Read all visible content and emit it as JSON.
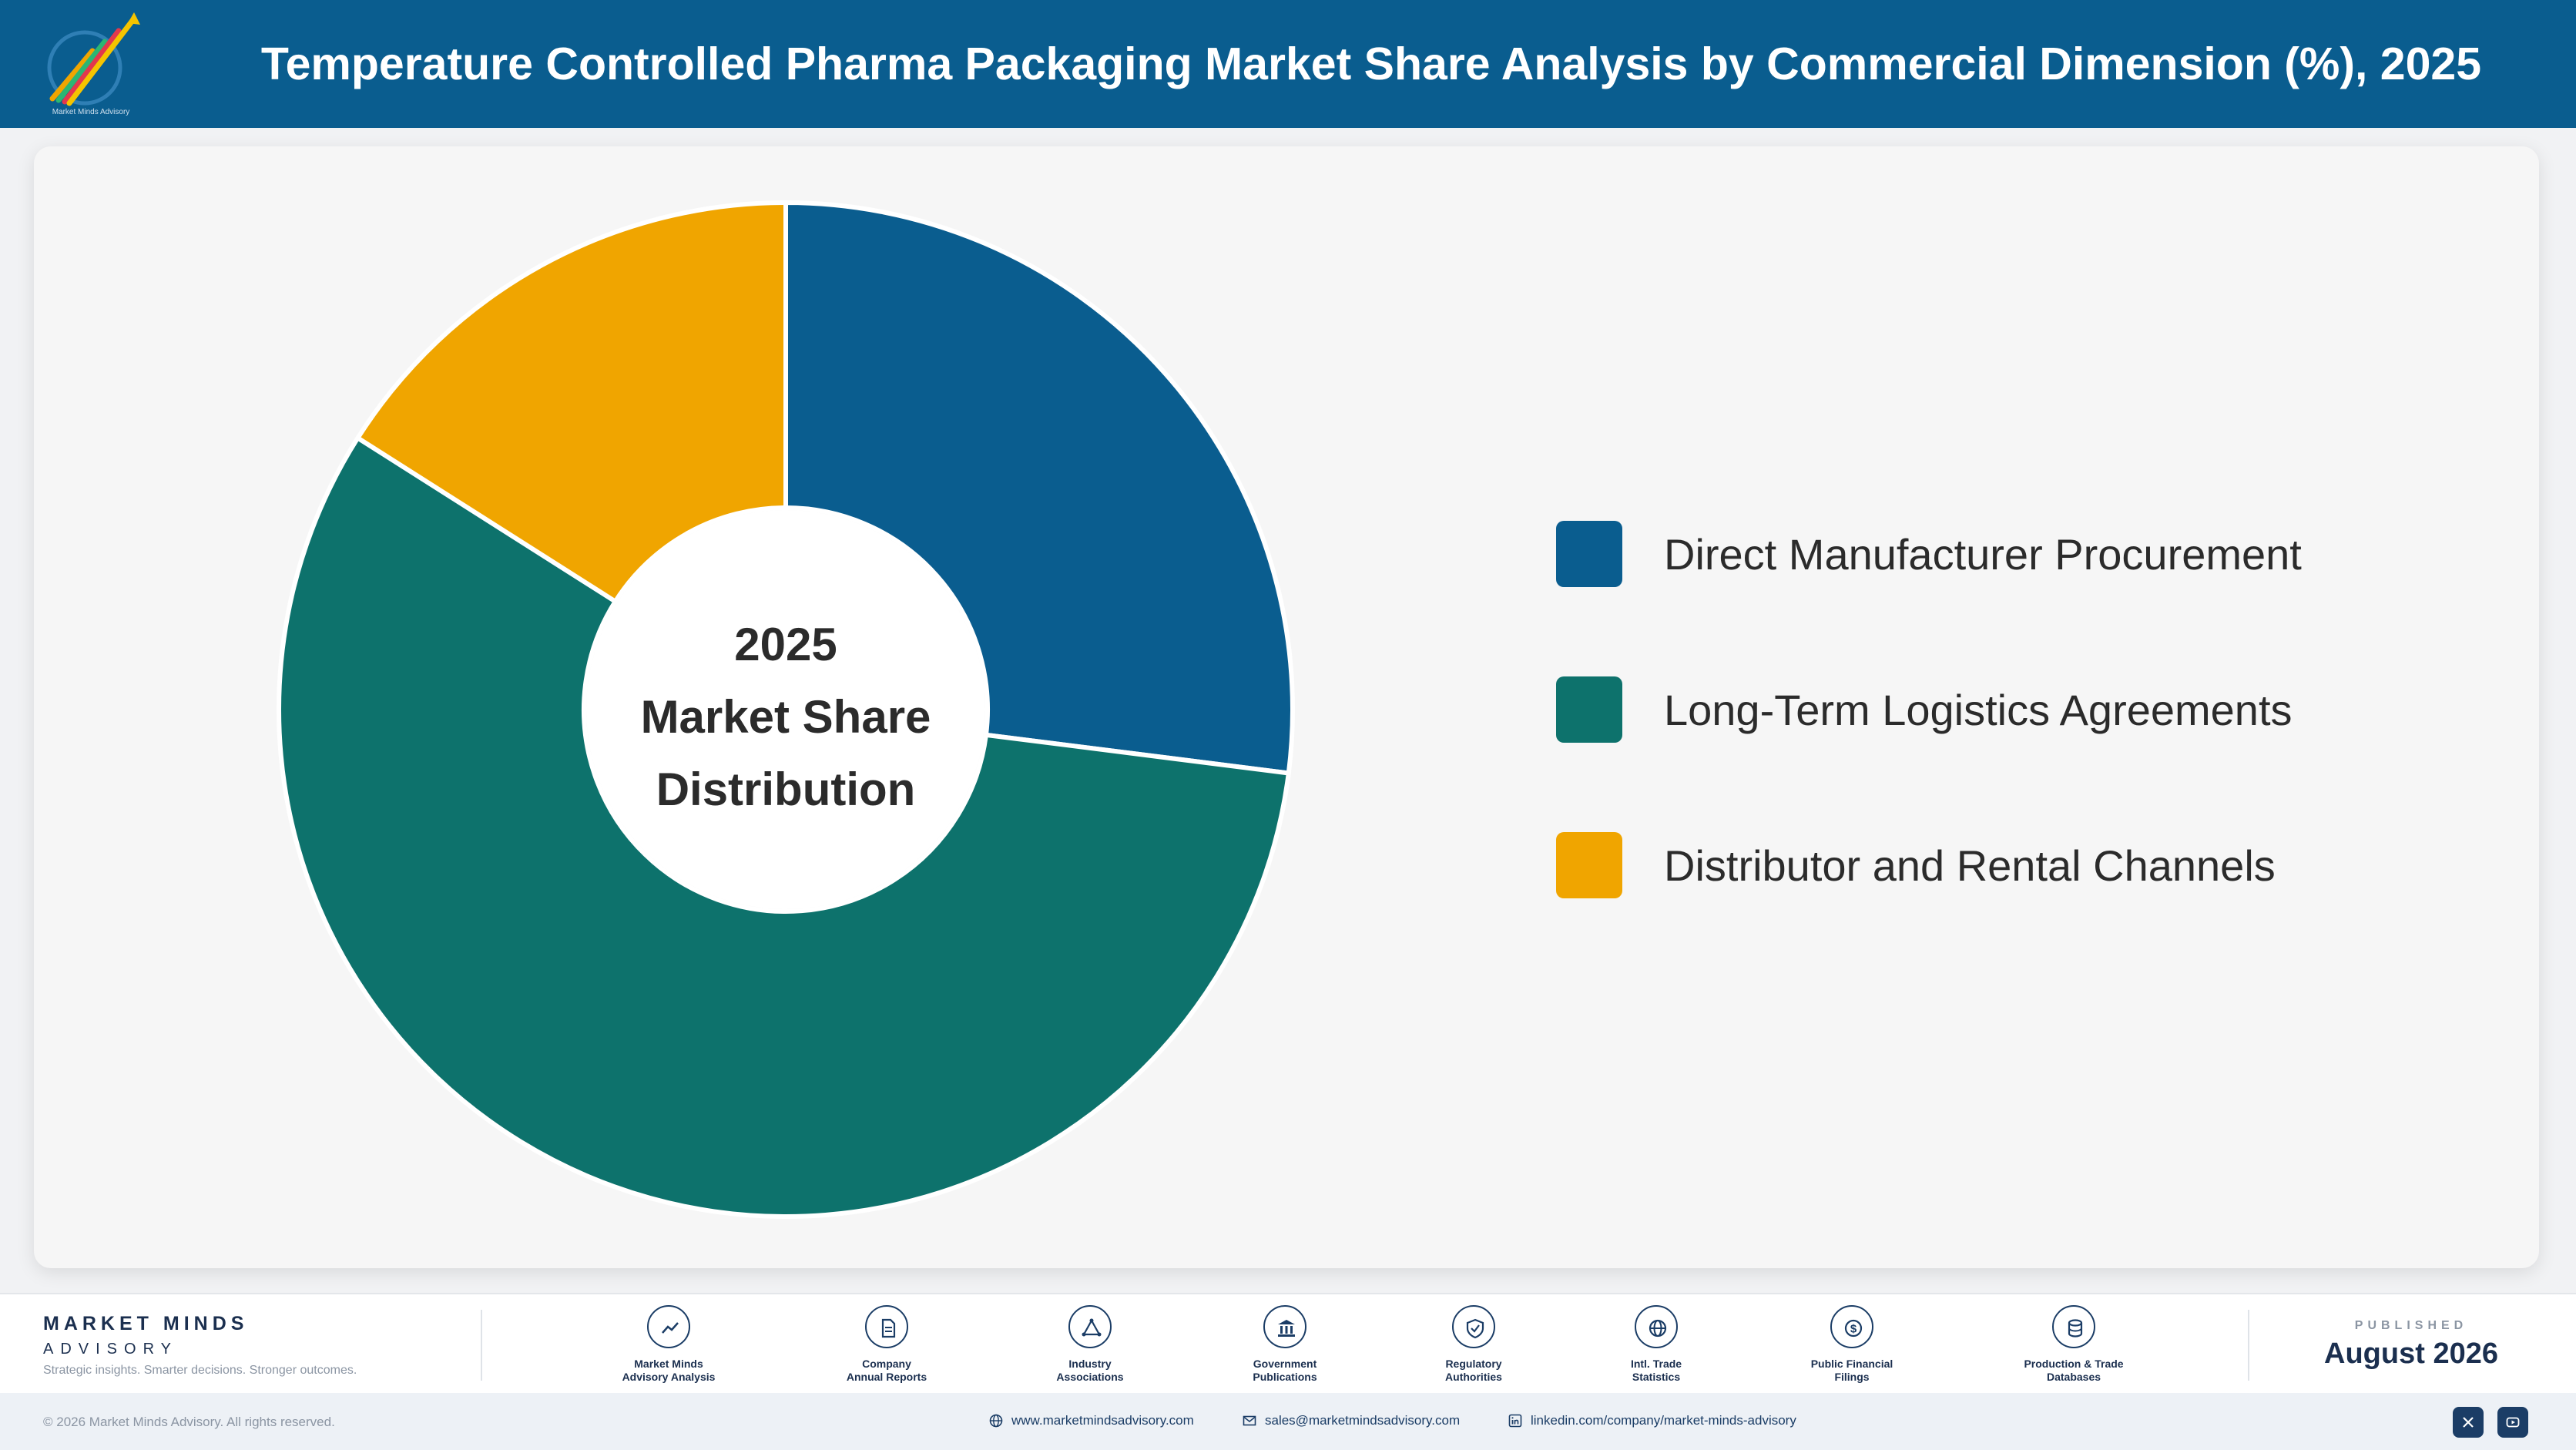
{
  "header": {
    "title": "Temperature Controlled Pharma Packaging Market Share Analysis by Commercial Dimension (%), 2025",
    "logo_caption": "Market Minds Advisory"
  },
  "chart_data": {
    "type": "pie",
    "style": "donut",
    "center_text": [
      "2025",
      "Market Share",
      "Distribution"
    ],
    "legend_position": "right",
    "slices": [
      {
        "label": "Direct Manufacturer Procurement",
        "value": 27,
        "color": "#0a5d8f"
      },
      {
        "label": "Long-Term Logistics Agreements",
        "value": 57,
        "color": "#0d726c"
      },
      {
        "label": "Distributor and Rental Channels",
        "value": 16,
        "color": "#f0a500"
      }
    ]
  },
  "footer": {
    "brand_name": "MARKET MINDS",
    "brand_sub": "ADVISORY",
    "tagline": "Strategic insights. Smarter decisions. Stronger outcomes.",
    "sources": [
      {
        "line1": "Market Minds",
        "line2": "Advisory Analysis",
        "icon": "trend-icon"
      },
      {
        "line1": "Company",
        "line2": "Annual Reports",
        "icon": "document-icon"
      },
      {
        "line1": "Industry",
        "line2": "Associations",
        "icon": "network-icon"
      },
      {
        "line1": "Government",
        "line2": "Publications",
        "icon": "building-icon"
      },
      {
        "line1": "Regulatory",
        "line2": "Authorities",
        "icon": "shield-icon"
      },
      {
        "line1": "Intl. Trade",
        "line2": "Statistics",
        "icon": "globe-icon"
      },
      {
        "line1": "Public Financial",
        "line2": "Filings",
        "icon": "dollar-icon"
      },
      {
        "line1": "Production & Trade",
        "line2": "Databases",
        "icon": "database-icon"
      }
    ],
    "published_label": "PUBLISHED",
    "published_date": "August 2026",
    "copyright": "© 2026 Market Minds Advisory. All rights reserved.",
    "website": "www.marketmindsadvisory.com",
    "email": "sales@marketmindsadvisory.com",
    "linkedin": "linkedin.com/company/market-minds-advisory"
  }
}
